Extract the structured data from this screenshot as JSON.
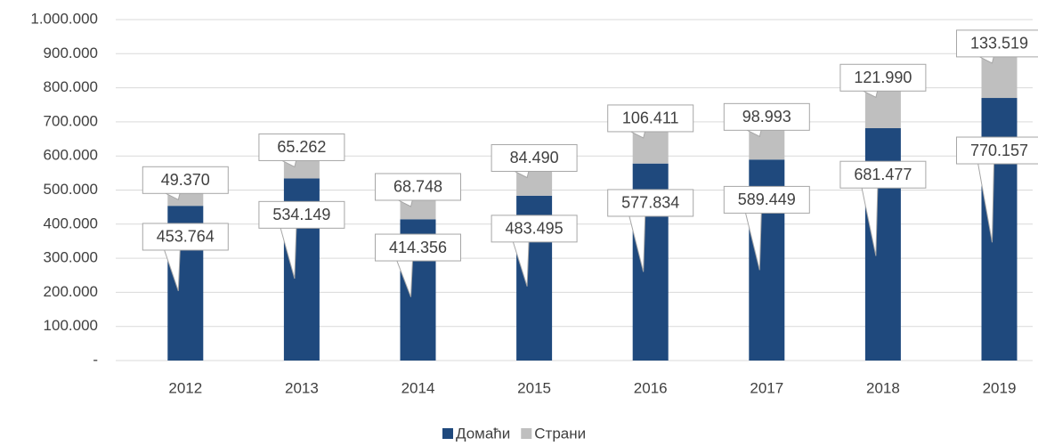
{
  "chart_data": {
    "type": "bar",
    "stacked": true,
    "categories": [
      "2012",
      "2013",
      "2014",
      "2015",
      "2016",
      "2017",
      "2018",
      "2019"
    ],
    "series": [
      {
        "name": "Домаћи",
        "color": "#1f497d",
        "values": [
          453764,
          534149,
          414356,
          483495,
          577834,
          589449,
          681477,
          770157
        ],
        "value_labels": [
          "453.764",
          "534.149",
          "414.356",
          "483.495",
          "577.834",
          "589.449",
          "681.477",
          "770.157"
        ]
      },
      {
        "name": "Страни",
        "color": "#bfbfbf",
        "values": [
          49370,
          65262,
          68748,
          84490,
          106411,
          98993,
          121990,
          133519
        ],
        "value_labels": [
          "49.370",
          "65.262",
          "68.748",
          "84.490",
          "106.411",
          "98.993",
          "121.990",
          "133.519"
        ]
      }
    ],
    "ylim": [
      0,
      1000000
    ],
    "yticks": [
      {
        "value": 0,
        "label": "-"
      },
      {
        "value": 100000,
        "label": "100.000"
      },
      {
        "value": 200000,
        "label": "200.000"
      },
      {
        "value": 300000,
        "label": "300.000"
      },
      {
        "value": 400000,
        "label": "400.000"
      },
      {
        "value": 500000,
        "label": "500.000"
      },
      {
        "value": 600000,
        "label": "600.000"
      },
      {
        "value": 700000,
        "label": "700.000"
      },
      {
        "value": 800000,
        "label": "800.000"
      },
      {
        "value": 900000,
        "label": "900.000"
      },
      {
        "value": 1000000,
        "label": "1.000.000"
      }
    ],
    "grid": true,
    "legend": "bottom"
  }
}
